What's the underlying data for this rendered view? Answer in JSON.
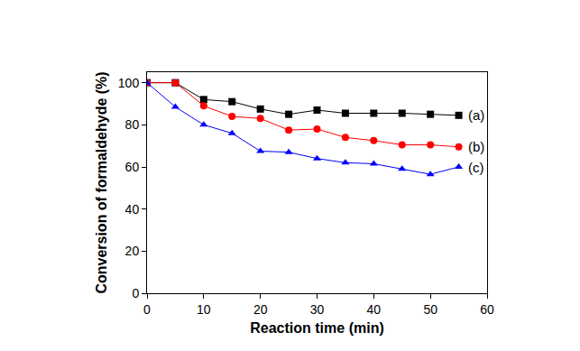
{
  "chart_data": {
    "type": "line",
    "x_label": "Reaction time (min)",
    "y_label": "Conversion of formaldehyde (%)",
    "x": [
      0,
      5,
      10,
      15,
      20,
      25,
      30,
      35,
      40,
      45,
      50,
      55
    ],
    "series": [
      {
        "name": "(a)",
        "color": "#000000",
        "marker": "square",
        "line_style": "solid",
        "values": [
          100,
          100,
          92,
          91,
          87.5,
          85,
          87,
          85.5,
          85.5,
          85.5,
          85,
          84.5
        ]
      },
      {
        "name": "(b)",
        "color": "#ff0000",
        "marker": "circle",
        "line_style": "solid",
        "values": [
          100,
          100,
          89,
          84,
          83,
          77.5,
          78,
          74,
          72.5,
          70.5,
          70.5,
          69.5
        ]
      },
      {
        "name": "(c)",
        "color": "#0000ff",
        "marker": "triangle-up",
        "line_style": "solid",
        "values": [
          100,
          88.5,
          80,
          76,
          67.5,
          67,
          64,
          62,
          61.5,
          59,
          56.5,
          60
        ]
      }
    ],
    "xlim": [
      0,
      60
    ],
    "xticks": [
      0,
      10,
      20,
      30,
      40,
      50,
      60
    ],
    "ylim": [
      0,
      105
    ],
    "yticks": [
      0,
      20,
      40,
      60,
      80,
      100
    ],
    "grid": false
  }
}
